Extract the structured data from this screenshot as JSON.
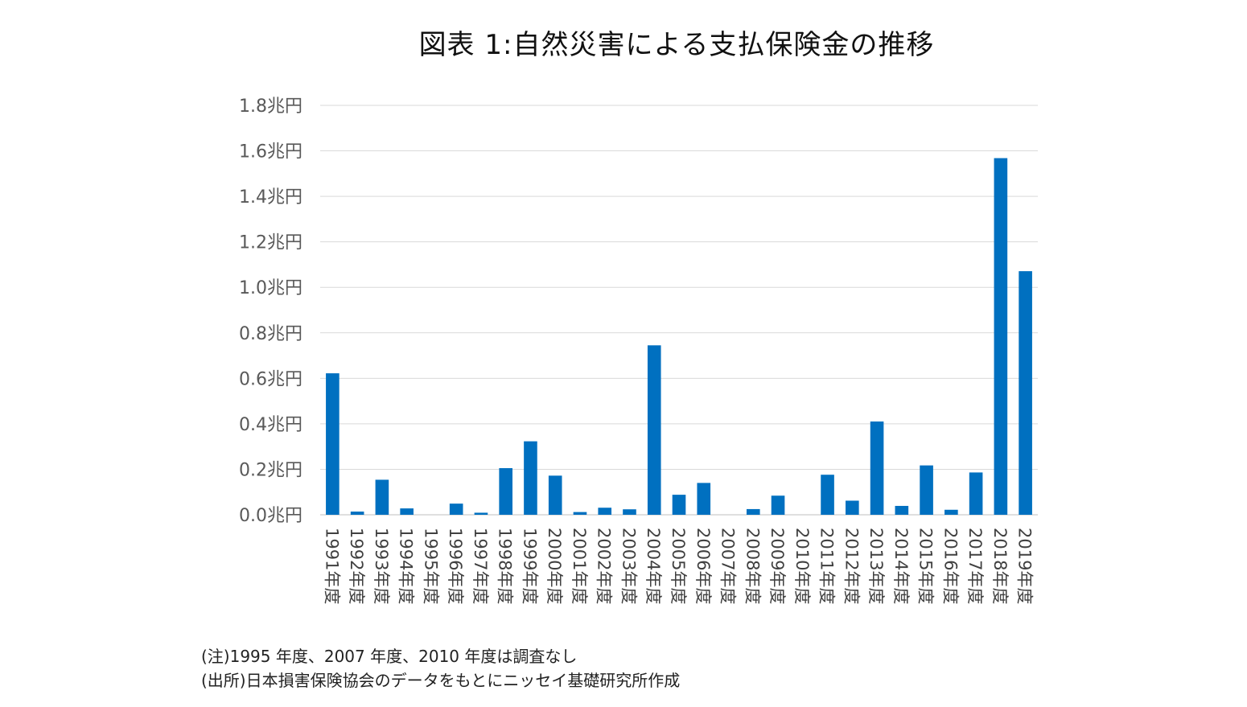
{
  "chart_data": {
    "type": "bar",
    "title": "図表 1:自然災害による支払保険金の推移",
    "xlabel": "",
    "ylabel": "",
    "ylim": [
      0,
      1.8
    ],
    "yticks": [
      "0.0兆円",
      "0.2兆円",
      "0.4兆円",
      "0.6兆円",
      "0.8兆円",
      "1.0兆円",
      "1.2兆円",
      "1.4兆円",
      "1.6兆円",
      "1.8兆円"
    ],
    "ytick_values": [
      0,
      0.2,
      0.4,
      0.6,
      0.8,
      1.0,
      1.2,
      1.4,
      1.6,
      1.8
    ],
    "grid": true,
    "legend": "none",
    "bar_color": "#0070C0",
    "categories": [
      "1991年度",
      "1992年度",
      "1993年度",
      "1994年度",
      "1995年度",
      "1996年度",
      "1997年度",
      "1998年度",
      "1999年度",
      "2000年度",
      "2001年度",
      "2002年度",
      "2003年度",
      "2004年度",
      "2005年度",
      "2006年度",
      "2007年度",
      "2008年度",
      "2009年度",
      "2010年度",
      "2011年度",
      "2012年度",
      "2013年度",
      "2014年度",
      "2015年度",
      "2016年度",
      "2017年度",
      "2018年度",
      "2019年度"
    ],
    "values": [
      0.622,
      0.014,
      0.154,
      0.028,
      0,
      0.049,
      0.009,
      0.205,
      0.323,
      0.172,
      0.012,
      0.031,
      0.024,
      0.745,
      0.088,
      0.14,
      0,
      0.025,
      0.084,
      0,
      0.176,
      0.062,
      0.41,
      0.039,
      0.217,
      0.022,
      0.186,
      1.568,
      1.071
    ]
  },
  "notes": {
    "note_1": "(注)1995 年度、2007 年度、2010 年度は調査なし",
    "note_2": "(出所)日本損害保険協会のデータをもとにニッセイ基礎研究所作成"
  }
}
